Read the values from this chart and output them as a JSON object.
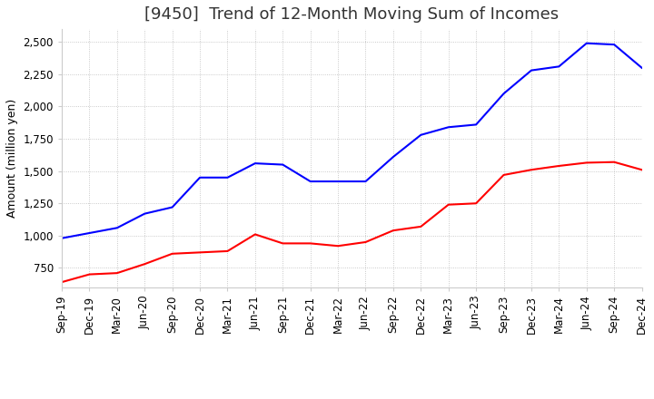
{
  "title": "[9450]  Trend of 12-Month Moving Sum of Incomes",
  "ylabel": "Amount (million yen)",
  "ylim": [
    600,
    2600
  ],
  "yticks": [
    750,
    1000,
    1250,
    1500,
    1750,
    2000,
    2250,
    2500
  ],
  "x_labels": [
    "Sep-19",
    "Dec-19",
    "Mar-20",
    "Jun-20",
    "Sep-20",
    "Dec-20",
    "Mar-21",
    "Jun-21",
    "Sep-21",
    "Dec-21",
    "Mar-22",
    "Jun-22",
    "Sep-22",
    "Dec-22",
    "Mar-23",
    "Jun-23",
    "Sep-23",
    "Dec-23",
    "Mar-24",
    "Jun-24",
    "Sep-24",
    "Dec-24"
  ],
  "ordinary_income": [
    980,
    1020,
    1060,
    1170,
    1220,
    1450,
    1450,
    1560,
    1550,
    1420,
    1420,
    1420,
    1610,
    1780,
    1840,
    1860,
    2100,
    2280,
    2310,
    2490,
    2480,
    2300
  ],
  "net_income": [
    640,
    700,
    710,
    780,
    860,
    870,
    880,
    1010,
    940,
    940,
    920,
    950,
    1040,
    1070,
    1240,
    1250,
    1470,
    1510,
    1540,
    1565,
    1570,
    1510
  ],
  "ordinary_color": "#0000ff",
  "net_color": "#ff0000",
  "line_width": 1.5,
  "background_color": "#ffffff",
  "plot_bg_color": "#ffffff",
  "grid_color": "#aaaaaa",
  "grid_style": "dotted",
  "title_fontsize": 13,
  "label_fontsize": 9,
  "tick_fontsize": 8.5
}
